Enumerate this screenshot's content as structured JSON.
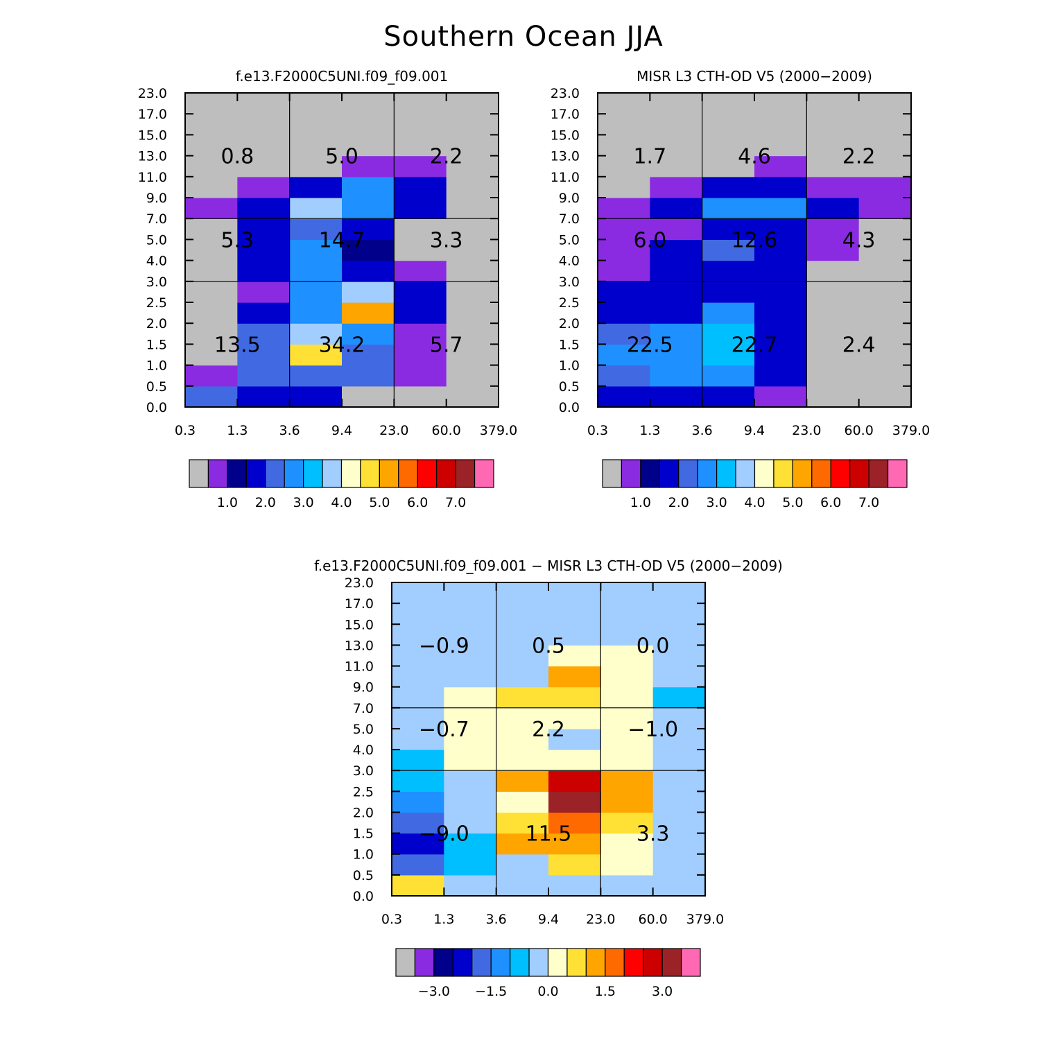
{
  "title": "Southern Ocean JJA",
  "tau_bins": [
    "0.3",
    "1.3",
    "3.6",
    "9.4",
    "23.0",
    "60.0",
    "379.0"
  ],
  "cth_bins": [
    "0.0",
    "0.5",
    "1.0",
    "1.5",
    "2.0",
    "2.5",
    "3.0",
    "4.0",
    "5.0",
    "7.0",
    "9.0",
    "11.0",
    "13.0",
    "15.0",
    "17.0",
    "23.0"
  ],
  "chart_data": [
    {
      "type": "heatmap",
      "title": "f.e13.F2000C5UNI.f09_f09.001",
      "xlabel": "",
      "ylabel": "",
      "x_edges": [
        "0.3",
        "1.3",
        "3.6",
        "9.4",
        "23.0",
        "60.0",
        "379.0"
      ],
      "y_edges": [
        "0.0",
        "0.5",
        "1.0",
        "1.5",
        "2.0",
        "2.5",
        "3.0",
        "4.0",
        "5.0",
        "7.0",
        "9.0",
        "11.0",
        "13.0",
        "15.0",
        "17.0",
        "23.0"
      ],
      "levels": [
        0.5,
        1.0,
        1.5,
        2.0,
        2.5,
        3.0,
        3.5,
        4.0,
        4.5,
        5.0,
        5.5,
        6.0,
        6.5,
        7.0,
        7.5
      ],
      "colorbar_labels": [
        "1.0",
        "2.0",
        "3.0",
        "4.0",
        "5.0",
        "6.0",
        "7.0"
      ],
      "colorbar_label_values": [
        1.0,
        2.0,
        3.0,
        4.0,
        5.0,
        6.0,
        7.0
      ],
      "cell_values": [
        [
          2.2,
          1.6,
          1.6,
          0.3,
          0.3,
          0.3
        ],
        [
          0.7,
          2.0,
          2.0,
          2.0,
          0.7,
          0.3
        ],
        [
          0.3,
          2.0,
          4.8,
          2.4,
          0.7,
          0.3
        ],
        [
          0.3,
          2.0,
          3.8,
          2.8,
          0.7,
          0.3
        ],
        [
          0.3,
          1.6,
          2.5,
          5.0,
          1.8,
          0.3
        ],
        [
          0.3,
          0.7,
          2.5,
          3.8,
          1.8,
          0.3
        ],
        [
          0.3,
          1.8,
          2.5,
          1.8,
          0.7,
          0.3
        ],
        [
          0.3,
          1.8,
          2.5,
          1.4,
          0.3,
          0.3
        ],
        [
          0.3,
          1.6,
          2.2,
          1.6,
          0.3,
          0.3
        ],
        [
          0.7,
          1.6,
          3.8,
          2.8,
          1.6,
          0.3
        ],
        [
          0.3,
          0.7,
          1.6,
          2.5,
          1.6,
          0.3
        ],
        [
          0.3,
          0.3,
          0.3,
          0.7,
          0.7,
          0.3
        ],
        [
          0.3,
          0.3,
          0.3,
          0.3,
          0.3,
          0.3
        ],
        [
          0.3,
          0.3,
          0.3,
          0.3,
          0.3,
          0.3
        ],
        [
          0.3,
          0.3,
          0.3,
          0.3,
          0.3,
          0.3
        ]
      ],
      "regions": [
        {
          "label": "0.8",
          "x": [
            0,
            2
          ],
          "y": [
            10,
            15
          ]
        },
        {
          "label": "5.0",
          "x": [
            2,
            4
          ],
          "y": [
            10,
            15
          ]
        },
        {
          "label": "2.2",
          "x": [
            4,
            6
          ],
          "y": [
            10,
            15
          ]
        },
        {
          "label": "5.3",
          "x": [
            0,
            2
          ],
          "y": [
            6,
            10
          ]
        },
        {
          "label": "14.7",
          "x": [
            2,
            4
          ],
          "y": [
            6,
            10
          ]
        },
        {
          "label": "3.3",
          "x": [
            4,
            6
          ],
          "y": [
            6,
            10
          ]
        },
        {
          "label": "13.5",
          "x": [
            0,
            2
          ],
          "y": [
            0,
            6
          ]
        },
        {
          "label": "34.2",
          "x": [
            2,
            4
          ],
          "y": [
            0,
            6
          ]
        },
        {
          "label": "5.7",
          "x": [
            4,
            6
          ],
          "y": [
            0,
            6
          ]
        }
      ]
    },
    {
      "type": "heatmap",
      "title": "MISR L3 CTH-OD V5 (2000-2009)",
      "xlabel": "",
      "ylabel": "",
      "x_edges": [
        "0.3",
        "1.3",
        "3.6",
        "9.4",
        "23.0",
        "60.0",
        "379.0"
      ],
      "y_edges": [
        "0.0",
        "0.5",
        "1.0",
        "1.5",
        "2.0",
        "2.5",
        "3.0",
        "4.0",
        "5.0",
        "7.0",
        "9.0",
        "11.0",
        "13.0",
        "15.0",
        "17.0",
        "23.0"
      ],
      "levels": [
        0.5,
        1.0,
        1.5,
        2.0,
        2.5,
        3.0,
        3.5,
        4.0,
        4.5,
        5.0,
        5.5,
        6.0,
        6.5,
        7.0,
        7.5
      ],
      "colorbar_labels": [
        "1.0",
        "2.0",
        "3.0",
        "4.0",
        "5.0",
        "6.0",
        "7.0"
      ],
      "colorbar_label_values": [
        1.0,
        2.0,
        3.0,
        4.0,
        5.0,
        6.0,
        7.0
      ],
      "cell_values": [
        [
          1.6,
          1.6,
          1.6,
          0.7,
          0.3,
          0.3
        ],
        [
          2.2,
          2.5,
          2.5,
          1.6,
          0.3,
          0.3
        ],
        [
          2.5,
          2.5,
          3.0,
          1.6,
          0.3,
          0.3
        ],
        [
          2.2,
          2.5,
          3.0,
          1.6,
          0.3,
          0.3
        ],
        [
          1.6,
          1.8,
          2.5,
          1.6,
          0.3,
          0.3
        ],
        [
          1.6,
          1.6,
          1.8,
          1.6,
          0.3,
          0.3
        ],
        [
          0.7,
          1.6,
          1.8,
          1.6,
          0.3,
          0.3
        ],
        [
          0.7,
          1.6,
          2.2,
          1.6,
          0.7,
          0.3
        ],
        [
          0.7,
          0.7,
          1.8,
          1.6,
          0.7,
          0.3
        ],
        [
          0.7,
          1.6,
          2.5,
          2.5,
          1.6,
          0.7
        ],
        [
          0.3,
          0.7,
          1.6,
          1.8,
          0.7,
          0.7
        ],
        [
          0.3,
          0.3,
          0.3,
          0.7,
          0.3,
          0.3
        ],
        [
          0.3,
          0.3,
          0.3,
          0.3,
          0.3,
          0.3
        ],
        [
          0.3,
          0.3,
          0.3,
          0.3,
          0.3,
          0.3
        ],
        [
          0.3,
          0.3,
          0.3,
          0.3,
          0.3,
          0.3
        ]
      ],
      "regions": [
        {
          "label": "1.7",
          "x": [
            0,
            2
          ],
          "y": [
            10,
            15
          ]
        },
        {
          "label": "4.6",
          "x": [
            2,
            4
          ],
          "y": [
            10,
            15
          ]
        },
        {
          "label": "2.2",
          "x": [
            4,
            6
          ],
          "y": [
            10,
            15
          ]
        },
        {
          "label": "6.0",
          "x": [
            0,
            2
          ],
          "y": [
            6,
            10
          ]
        },
        {
          "label": "12.6",
          "x": [
            2,
            4
          ],
          "y": [
            6,
            10
          ]
        },
        {
          "label": "4.3",
          "x": [
            4,
            6
          ],
          "y": [
            6,
            10
          ]
        },
        {
          "label": "22.5",
          "x": [
            0,
            2
          ],
          "y": [
            0,
            6
          ]
        },
        {
          "label": "22.7",
          "x": [
            2,
            4
          ],
          "y": [
            0,
            6
          ]
        },
        {
          "label": "2.4",
          "x": [
            4,
            6
          ],
          "y": [
            0,
            6
          ]
        }
      ]
    },
    {
      "type": "heatmap",
      "title": "f.e13.F2000C5UNI.f09_f09.001 - MISR L3 CTH-OD V5 (2000-2009)",
      "xlabel": "",
      "ylabel": "",
      "x_edges": [
        "0.3",
        "1.3",
        "3.6",
        "9.4",
        "23.0",
        "60.0",
        "379.0"
      ],
      "y_edges": [
        "0.0",
        "0.5",
        "1.0",
        "1.5",
        "2.0",
        "2.5",
        "3.0",
        "4.0",
        "5.0",
        "7.0",
        "9.0",
        "11.0",
        "13.0",
        "15.0",
        "17.0",
        "23.0"
      ],
      "levels": [
        -3.5,
        -3.0,
        -2.5,
        -2.0,
        -1.5,
        -1.0,
        -0.5,
        0.0,
        0.5,
        1.0,
        1.5,
        2.0,
        2.5,
        3.0,
        3.5
      ],
      "colorbar_labels": [
        "-3.0",
        "-1.5",
        "0.0",
        "1.5",
        "3.0"
      ],
      "colorbar_label_values": [
        -3.0,
        -1.5,
        0.0,
        1.5,
        3.0
      ],
      "cell_values": [
        [
          0.7,
          -0.2,
          -0.2,
          -0.2,
          -0.2,
          -0.2
        ],
        [
          -1.8,
          -0.7,
          -0.2,
          0.7,
          0.2,
          -0.2
        ],
        [
          -2.2,
          -0.7,
          1.2,
          1.2,
          0.2,
          -0.2
        ],
        [
          -1.8,
          -0.2,
          0.7,
          1.7,
          0.7,
          -0.2
        ],
        [
          -1.3,
          -0.2,
          0.2,
          3.2,
          1.2,
          -0.2
        ],
        [
          -0.7,
          -0.2,
          1.2,
          2.7,
          1.2,
          -0.2
        ],
        [
          -0.7,
          0.2,
          0.2,
          0.2,
          0.2,
          -0.2
        ],
        [
          -0.2,
          0.2,
          0.2,
          -0.2,
          0.2,
          -0.2
        ],
        [
          -0.2,
          0.2,
          0.2,
          0.2,
          0.2,
          -0.2
        ],
        [
          -0.2,
          0.2,
          0.7,
          0.7,
          0.2,
          -0.7
        ],
        [
          -0.2,
          -0.2,
          -0.2,
          1.2,
          0.2,
          -0.2
        ],
        [
          -0.2,
          -0.2,
          -0.2,
          0.2,
          0.2,
          -0.2
        ],
        [
          -0.2,
          -0.2,
          -0.2,
          -0.2,
          -0.2,
          -0.2
        ],
        [
          -0.2,
          -0.2,
          -0.2,
          -0.2,
          -0.2,
          -0.2
        ],
        [
          -0.2,
          -0.2,
          -0.2,
          -0.2,
          -0.2,
          -0.2
        ]
      ],
      "regions": [
        {
          "label": "-0.9",
          "x": [
            0,
            2
          ],
          "y": [
            10,
            15
          ]
        },
        {
          "label": "0.5",
          "x": [
            2,
            4
          ],
          "y": [
            10,
            15
          ]
        },
        {
          "label": "0.0",
          "x": [
            4,
            6
          ],
          "y": [
            10,
            15
          ]
        },
        {
          "label": "-0.7",
          "x": [
            0,
            2
          ],
          "y": [
            6,
            10
          ]
        },
        {
          "label": "2.2",
          "x": [
            2,
            4
          ],
          "y": [
            6,
            10
          ]
        },
        {
          "label": "-1.0",
          "x": [
            4,
            6
          ],
          "y": [
            6,
            10
          ]
        },
        {
          "label": "-9.0",
          "x": [
            0,
            2
          ],
          "y": [
            0,
            6
          ]
        },
        {
          "label": "11.5",
          "x": [
            2,
            4
          ],
          "y": [
            0,
            6
          ]
        },
        {
          "label": "3.3",
          "x": [
            4,
            6
          ],
          "y": [
            0,
            6
          ]
        }
      ]
    }
  ],
  "colors": {
    "palette": [
      "#bebebe",
      "#8a2be2",
      "#00008b",
      "#0000cd",
      "#4169e1",
      "#1e90ff",
      "#00bfff",
      "#a2cdff",
      "#ffffcc",
      "#ffe135",
      "#ffa500",
      "#ff6a00",
      "#ff0000",
      "#cd0000",
      "#9b2226",
      "#ff69b4"
    ],
    "grid": "#000000"
  }
}
